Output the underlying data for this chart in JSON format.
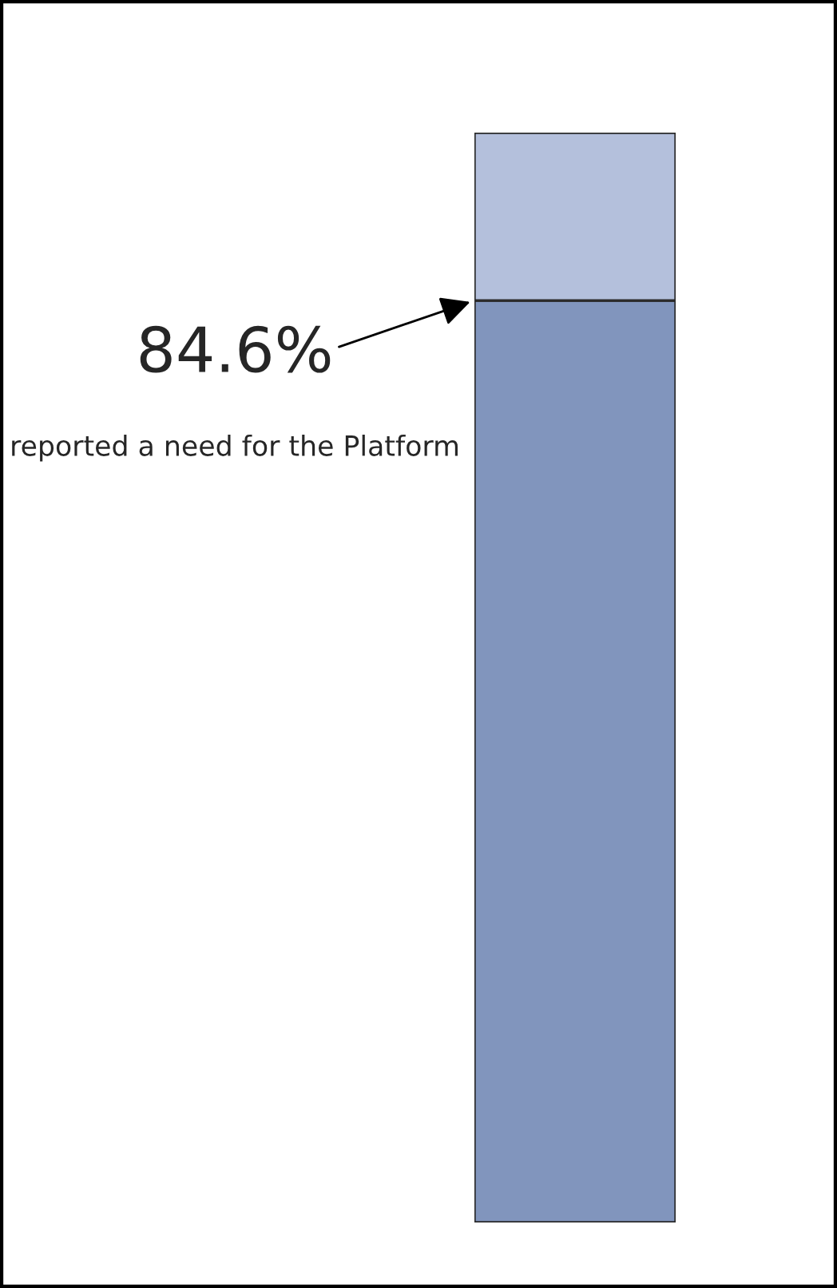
{
  "chart_data": {
    "type": "bar",
    "stacked": true,
    "tick_labels": false,
    "categories": [
      null
    ],
    "series": [
      {
        "color": "#8195bd",
        "values": [
          84.6
        ],
        "value_labels": [
          "84.6%"
        ]
      },
      {
        "color": "#b4c0dc",
        "values": [
          15.4
        ]
      }
    ],
    "annotations": [
      "reported a need for the Platform"
    ]
  }
}
